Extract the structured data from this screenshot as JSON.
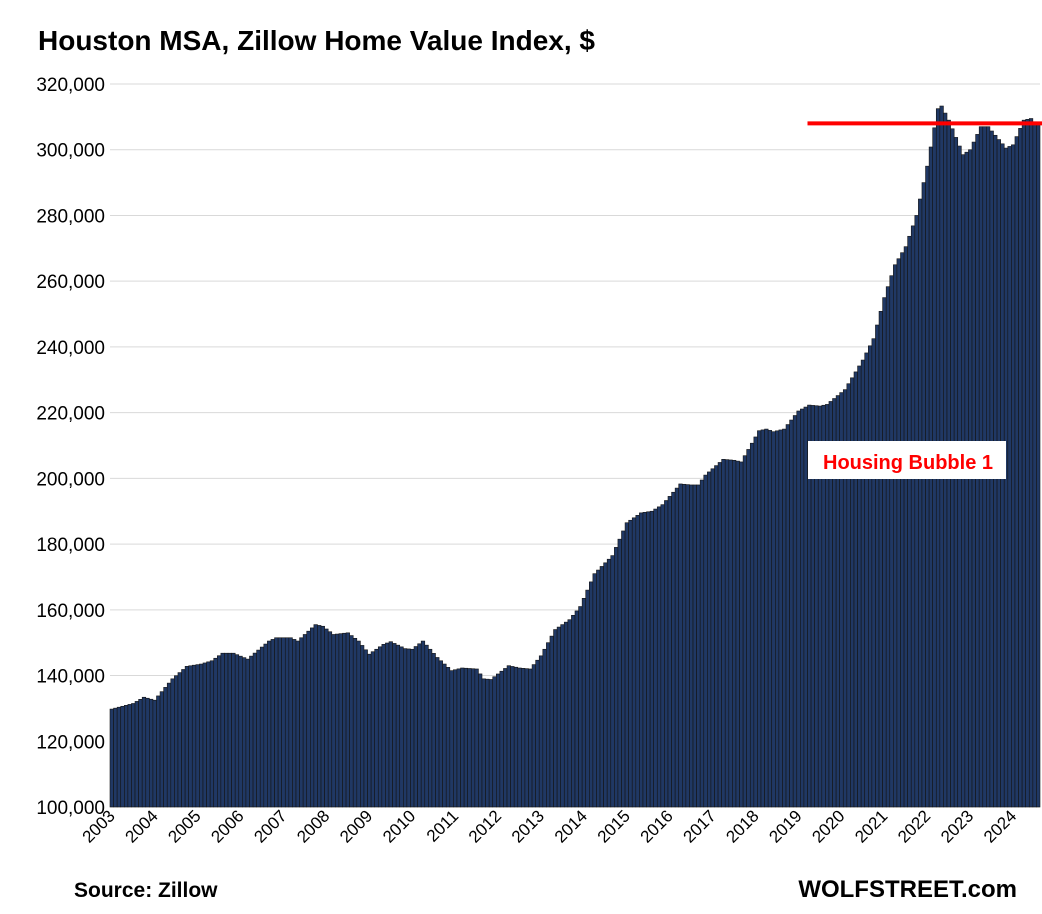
{
  "chart_data": {
    "type": "bar",
    "title": "Houston MSA, Zillow Home Value Index, $",
    "xlabel": "",
    "ylabel": "",
    "ylim": [
      100000,
      320000
    ],
    "yticks": [
      100000,
      120000,
      140000,
      160000,
      180000,
      200000,
      220000,
      240000,
      260000,
      280000,
      300000,
      320000
    ],
    "ytick_labels": [
      "100,000",
      "120,000",
      "140,000",
      "160,000",
      "180,000",
      "200,000",
      "220,000",
      "240,000",
      "260,000",
      "280,000",
      "300,000",
      "320,000"
    ],
    "start_year": 2003,
    "frequency": "monthly",
    "year_labels": [
      "2003",
      "2004",
      "2005",
      "2006",
      "2007",
      "2008",
      "2009",
      "2010",
      "2011",
      "2012",
      "2013",
      "2014",
      "2015",
      "2016",
      "2017",
      "2018",
      "2019",
      "2020",
      "2021",
      "2022",
      "2023",
      "2024"
    ],
    "anchor_values": [
      [
        0,
        129800
      ],
      [
        6,
        131500
      ],
      [
        9,
        133400
      ],
      [
        12,
        132500
      ],
      [
        17,
        139000
      ],
      [
        21,
        142800
      ],
      [
        25,
        143500
      ],
      [
        28,
        144500
      ],
      [
        31,
        146800
      ],
      [
        34,
        146800
      ],
      [
        38,
        145000
      ],
      [
        44,
        150500
      ],
      [
        46,
        151500
      ],
      [
        50,
        151500
      ],
      [
        52,
        150500
      ],
      [
        57,
        155500
      ],
      [
        59,
        155000
      ],
      [
        62,
        152500
      ],
      [
        66,
        153000
      ],
      [
        69,
        150500
      ],
      [
        72,
        146500
      ],
      [
        76,
        149500
      ],
      [
        78,
        150300
      ],
      [
        82,
        148200
      ],
      [
        84,
        148000
      ],
      [
        87,
        150500
      ],
      [
        91,
        145500
      ],
      [
        95,
        141500
      ],
      [
        98,
        142300
      ],
      [
        102,
        142000
      ],
      [
        104,
        139000
      ],
      [
        106,
        138800
      ],
      [
        111,
        143000
      ],
      [
        114,
        142300
      ],
      [
        117,
        142000
      ],
      [
        120,
        146000
      ],
      [
        124,
        154000
      ],
      [
        128,
        157000
      ],
      [
        131,
        161000
      ],
      [
        135,
        171000
      ],
      [
        140,
        176500
      ],
      [
        144,
        186500
      ],
      [
        148,
        189500
      ],
      [
        151,
        190000
      ],
      [
        154,
        192000
      ],
      [
        159,
        198300
      ],
      [
        162,
        198000
      ],
      [
        164,
        198000
      ],
      [
        166,
        201000
      ],
      [
        171,
        205800
      ],
      [
        174,
        205500
      ],
      [
        176,
        205000
      ],
      [
        181,
        214500
      ],
      [
        183,
        215000
      ],
      [
        185,
        214200
      ],
      [
        188,
        215000
      ],
      [
        192,
        220500
      ],
      [
        195,
        222300
      ],
      [
        198,
        222000
      ],
      [
        200,
        222500
      ],
      [
        205,
        227000
      ],
      [
        210,
        236000
      ],
      [
        213,
        242500
      ],
      [
        216,
        255000
      ],
      [
        219,
        265000
      ],
      [
        222,
        270500
      ],
      [
        225,
        280000
      ],
      [
        228,
        295000
      ],
      [
        231,
        312500
      ],
      [
        232,
        313300
      ],
      [
        234,
        309000
      ],
      [
        238,
        298500
      ],
      [
        240,
        300000
      ],
      [
        243,
        307000
      ],
      [
        245,
        307000
      ],
      [
        250,
        300500
      ],
      [
        252,
        301500
      ],
      [
        255,
        309000
      ],
      [
        257,
        309500
      ],
      [
        259,
        307500
      ]
    ],
    "bar_color": "#203864",
    "reference_line": {
      "value": 308000,
      "from_year": 2019.25,
      "color": "#ff0000"
    },
    "annotation": {
      "text": "Housing Bubble 1",
      "color": "#ff0000"
    },
    "grid": true
  },
  "footer": {
    "source": "Source: Zillow",
    "brand": "WOLFSTREET.com"
  }
}
